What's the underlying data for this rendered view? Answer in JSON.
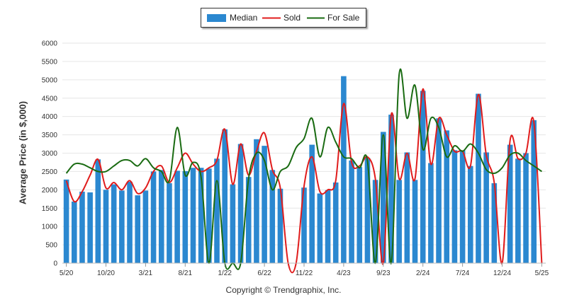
{
  "chart_data": {
    "type": "bar+line",
    "title": "",
    "xlabel": "",
    "ylabel": "Average Price (in $,000)",
    "ylim": [
      0,
      6000
    ],
    "yticks": [
      0,
      500,
      1000,
      1500,
      2000,
      2500,
      3000,
      3500,
      4000,
      4500,
      5000,
      5500,
      6000
    ],
    "x_tick_labels": [
      "5/20",
      "10/20",
      "3/21",
      "8/21",
      "1/22",
      "6/22",
      "11/22",
      "4/23",
      "9/23",
      "2/24",
      "7/24",
      "12/24",
      "5/25"
    ],
    "categories": [
      "5/20",
      "6/20",
      "7/20",
      "8/20",
      "9/20",
      "10/20",
      "11/20",
      "12/20",
      "1/21",
      "2/21",
      "3/21",
      "4/21",
      "5/21",
      "6/21",
      "7/21",
      "8/21",
      "9/21",
      "10/21",
      "11/21",
      "12/21",
      "1/22",
      "2/22",
      "3/22",
      "4/22",
      "5/22",
      "6/22",
      "7/22",
      "8/22",
      "9/22",
      "10/22",
      "11/22",
      "12/22",
      "1/23",
      "2/23",
      "3/23",
      "4/23",
      "5/23",
      "6/23",
      "7/23",
      "8/23",
      "9/23",
      "10/23",
      "11/23",
      "12/23",
      "1/24",
      "2/24",
      "3/24",
      "4/24",
      "5/24",
      "6/24",
      "7/24",
      "8/24",
      "9/24",
      "10/24",
      "11/24",
      "12/24",
      "1/25",
      "2/25",
      "3/25",
      "4/25",
      "5/25"
    ],
    "legend": {
      "placement": "top-center",
      "entries": [
        "Median",
        "Sold",
        "For Sale"
      ]
    },
    "grid": "horizontal",
    "series": [
      {
        "name": "Median",
        "type": "bar",
        "color": "#2b88d0",
        "values": [
          2280,
          1680,
          1950,
          1930,
          2830,
          2000,
          2150,
          1980,
          2220,
          1850,
          1980,
          2500,
          2540,
          2180,
          2520,
          2510,
          2600,
          2600,
          2580,
          2850,
          3650,
          2150,
          3250,
          2350,
          3380,
          3200,
          2540,
          2030,
          0,
          0,
          2060,
          3230,
          1900,
          1990,
          2200,
          5100,
          2800,
          2620,
          2870,
          2270,
          3580,
          4050,
          2270,
          3020,
          2270,
          4700,
          2730,
          3950,
          3620,
          3080,
          3080,
          2650,
          4620,
          3020,
          2180,
          0,
          3230,
          2850,
          3000,
          3900,
          0
        ]
      },
      {
        "name": "Sold",
        "type": "line",
        "color": "#e01c1c",
        "values": [
          2250,
          1680,
          1950,
          2400,
          2830,
          2050,
          2200,
          2000,
          2250,
          1900,
          2050,
          2500,
          2650,
          2200,
          2600,
          3000,
          2700,
          2500,
          2600,
          2800,
          3650,
          2150,
          3250,
          2400,
          3050,
          3550,
          2550,
          2050,
          0,
          0,
          2100,
          2900,
          1950,
          2000,
          2250,
          4350,
          2750,
          2650,
          2900,
          2300,
          0,
          4050,
          2300,
          3000,
          2300,
          4750,
          2700,
          3950,
          3500,
          3050,
          3050,
          2650,
          4600,
          2950,
          2200,
          0,
          3350,
          2850,
          3000,
          3850,
          0
        ]
      },
      {
        "name": "For Sale",
        "type": "line",
        "color": "#1a6b12",
        "values": [
          2450,
          2700,
          2700,
          2600,
          2500,
          2500,
          2650,
          2800,
          2800,
          2650,
          2850,
          2600,
          2500,
          2250,
          3700,
          2400,
          2750,
          2350,
          0,
          2250,
          0,
          0,
          0,
          2300,
          3000,
          2800,
          2000,
          2500,
          2650,
          3150,
          3400,
          3950,
          2900,
          3700,
          3300,
          2900,
          2850,
          2600,
          2800,
          0,
          3500,
          0,
          5150,
          3950,
          4850,
          3100,
          3950,
          3700,
          2900,
          3200,
          3050,
          3250,
          3000,
          2550,
          2450,
          2600,
          2950,
          3000,
          2800,
          2650,
          2500
        ]
      }
    ]
  },
  "copyright": "Copyright © Trendgraphix, Inc."
}
